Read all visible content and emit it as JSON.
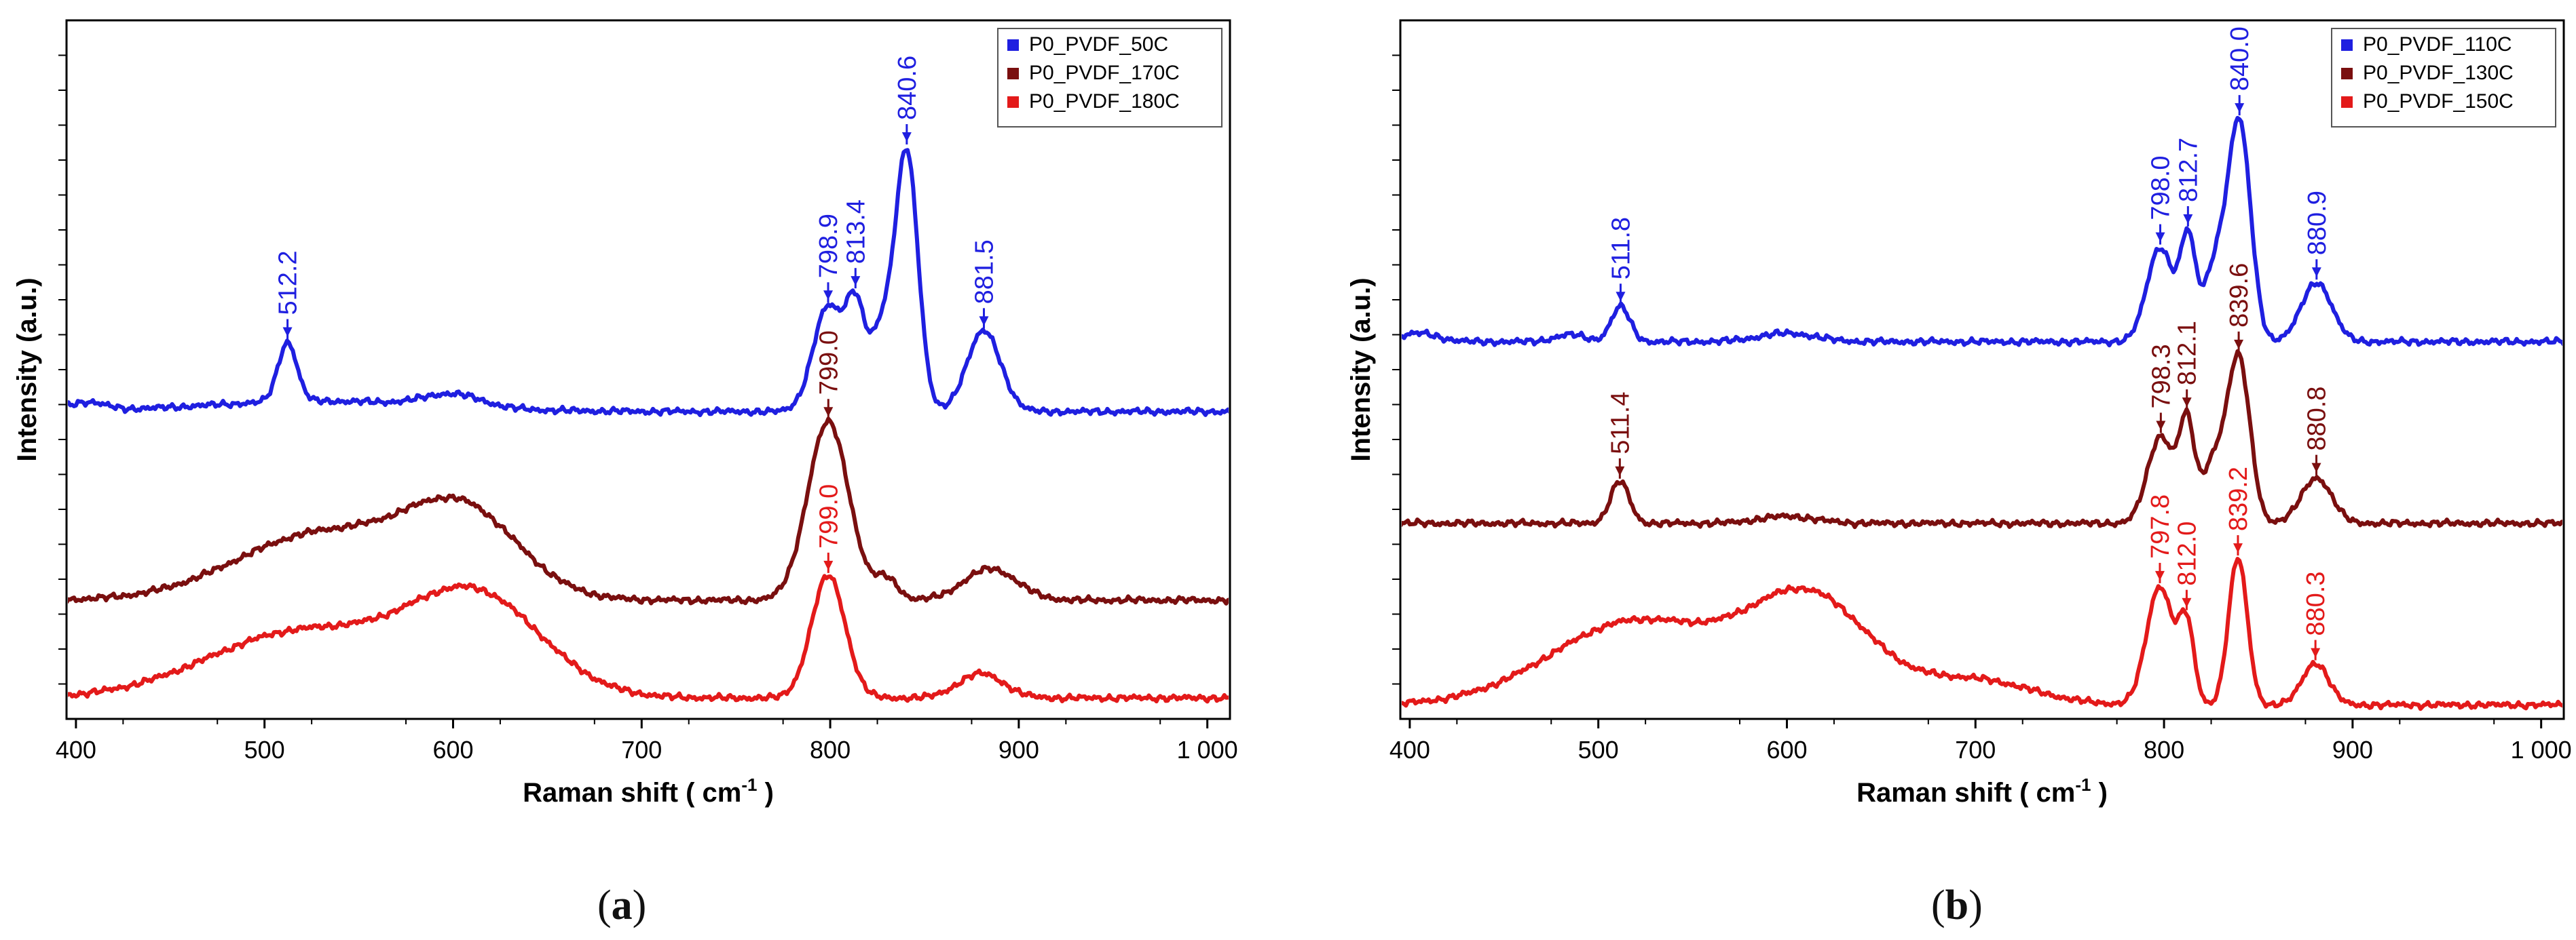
{
  "figure": {
    "caption_a": "(a)",
    "caption_b": "(b)",
    "caption_a_letter": "a",
    "caption_b_letter": "b"
  },
  "chart_data": [
    {
      "id": "a",
      "type": "line",
      "title": "",
      "xlabel": "Raman shift ( cm-1 )",
      "xlabel_main": "Raman shift ( cm",
      "xlabel_sup": "-1",
      "xlabel_end": " )",
      "ylabel": "Intensity (a.u.)",
      "xlim": [
        395,
        1012
      ],
      "ylim": [
        0,
        1
      ],
      "grid": false,
      "legend_position": "top-right",
      "xticks": [
        400,
        500,
        600,
        700,
        800,
        900,
        1000
      ],
      "xtick_labels": [
        "400",
        "500",
        "600",
        "700",
        "800",
        "900",
        "1 000"
      ],
      "series": [
        {
          "name": "P0_PVDF_50C",
          "color": "#1f1fe0",
          "baseline": 0.44,
          "label_color": "#1f1fe0",
          "bands": [
            {
              "x0": 530,
              "amp": 0.015,
              "w": 60
            },
            {
              "x0": 600,
              "amp": 0.018,
              "w": 15
            },
            {
              "x0": 405,
              "amp": 0.012,
              "w": 10
            },
            {
              "x0": 512.2,
              "amp": 0.085,
              "w": 5
            },
            {
              "x0": 798.9,
              "amp": 0.15,
              "w": 8
            },
            {
              "x0": 813.4,
              "amp": 0.135,
              "w": 5
            },
            {
              "x0": 827,
              "amp": 0.11,
              "w": 6
            },
            {
              "x0": 840.6,
              "amp": 0.37,
              "w": 6
            },
            {
              "x0": 881.5,
              "amp": 0.115,
              "w": 9
            }
          ],
          "peak_labels": [
            {
              "x": 512.2,
              "text": "512.2"
            },
            {
              "x": 798.9,
              "text": "798.9"
            },
            {
              "x": 813.4,
              "text": "813.4"
            },
            {
              "x": 840.6,
              "text": "840.6"
            },
            {
              "x": 881.5,
              "text": "881.5"
            }
          ]
        },
        {
          "name": "P0_PVDF_170C",
          "color": "#7a0f0f",
          "baseline": 0.17,
          "label_color": "#7a0f0f",
          "bands": [
            {
              "x0": 530,
              "amp": 0.095,
              "w": 45
            },
            {
              "x0": 605,
              "amp": 0.12,
              "w": 30
            },
            {
              "x0": 799.0,
              "amp": 0.255,
              "w": 11
            },
            {
              "x0": 830,
              "amp": 0.03,
              "w": 6
            },
            {
              "x0": 885,
              "amp": 0.045,
              "w": 14
            }
          ],
          "peak_labels": [
            {
              "x": 799.0,
              "text": "799.0"
            }
          ]
        },
        {
          "name": "P0_PVDF_180C",
          "color": "#e31a1a",
          "baseline": 0.03,
          "label_color": "#e31a1a",
          "bands": [
            {
              "x0": 520,
              "amp": 0.095,
              "w": 50
            },
            {
              "x0": 612,
              "amp": 0.14,
              "w": 35
            },
            {
              "x0": 799.0,
              "amp": 0.175,
              "w": 9
            },
            {
              "x0": 880,
              "amp": 0.035,
              "w": 12
            }
          ],
          "peak_labels": [
            {
              "x": 799.0,
              "text": "799.0"
            }
          ]
        }
      ]
    },
    {
      "id": "b",
      "type": "line",
      "title": "",
      "xlabel": "Raman shift ( cm-1 )",
      "xlabel_main": "Raman shift ( cm",
      "xlabel_sup": "-1",
      "xlabel_end": " )",
      "ylabel": "Intensity (a.u.)",
      "xlim": [
        395,
        1012
      ],
      "ylim": [
        0,
        1
      ],
      "grid": false,
      "legend_position": "top-right",
      "xticks": [
        400,
        500,
        600,
        700,
        800,
        900,
        1000
      ],
      "xtick_labels": [
        "400",
        "500",
        "600",
        "700",
        "800",
        "900",
        "1 000"
      ],
      "series": [
        {
          "name": "P0_PVDF_110C",
          "color": "#1f1fe0",
          "baseline": 0.54,
          "label_color": "#1f1fe0",
          "bands": [
            {
              "x0": 405,
              "amp": 0.012,
              "w": 10
            },
            {
              "x0": 485,
              "amp": 0.01,
              "w": 8
            },
            {
              "x0": 511.8,
              "amp": 0.05,
              "w": 5
            },
            {
              "x0": 600,
              "amp": 0.012,
              "w": 15
            },
            {
              "x0": 798.0,
              "amp": 0.135,
              "w": 7
            },
            {
              "x0": 812.7,
              "amp": 0.14,
              "w": 4
            },
            {
              "x0": 827,
              "amp": 0.105,
              "w": 6
            },
            {
              "x0": 840.0,
              "amp": 0.31,
              "w": 6
            },
            {
              "x0": 880.9,
              "amp": 0.085,
              "w": 8
            }
          ],
          "peak_labels": [
            {
              "x": 511.8,
              "text": "511.8"
            },
            {
              "x": 798.0,
              "text": "798.0"
            },
            {
              "x": 812.7,
              "text": "812.7"
            },
            {
              "x": 840.0,
              "text": "840.0"
            },
            {
              "x": 880.9,
              "text": "880.9"
            }
          ]
        },
        {
          "name": "P0_PVDF_130C",
          "color": "#7a0f0f",
          "baseline": 0.28,
          "label_color": "#7a0f0f",
          "bands": [
            {
              "x0": 511.4,
              "amp": 0.06,
              "w": 5
            },
            {
              "x0": 600,
              "amp": 0.01,
              "w": 15
            },
            {
              "x0": 798.3,
              "amp": 0.125,
              "w": 7
            },
            {
              "x0": 812.1,
              "amp": 0.135,
              "w": 4
            },
            {
              "x0": 826,
              "amp": 0.085,
              "w": 6
            },
            {
              "x0": 839.6,
              "amp": 0.235,
              "w": 6
            },
            {
              "x0": 880.8,
              "amp": 0.065,
              "w": 8
            }
          ],
          "peak_labels": [
            {
              "x": 511.4,
              "text": "511.4"
            },
            {
              "x": 798.3,
              "text": "798.3"
            },
            {
              "x": 812.1,
              "text": "812.1"
            },
            {
              "x": 839.6,
              "text": "839.6"
            },
            {
              "x": 880.8,
              "text": "880.8"
            }
          ]
        },
        {
          "name": "P0_PVDF_150C",
          "color": "#e31a1a",
          "baseline": 0.02,
          "label_color": "#e31a1a",
          "bands": [
            {
              "x0": 520,
              "amp": 0.12,
              "w": 45
            },
            {
              "x0": 612,
              "amp": 0.15,
              "w": 32
            },
            {
              "x0": 700,
              "amp": 0.035,
              "w": 30
            },
            {
              "x0": 797.8,
              "amp": 0.17,
              "w": 7
            },
            {
              "x0": 812.0,
              "amp": 0.11,
              "w": 4
            },
            {
              "x0": 839.2,
              "amp": 0.21,
              "w": 5
            },
            {
              "x0": 880.3,
              "amp": 0.06,
              "w": 7
            }
          ],
          "peak_labels": [
            {
              "x": 797.8,
              "text": "797.8"
            },
            {
              "x": 812.0,
              "text": "812.0"
            },
            {
              "x": 839.2,
              "text": "839.2"
            },
            {
              "x": 880.3,
              "text": "880.3"
            }
          ]
        }
      ]
    }
  ]
}
